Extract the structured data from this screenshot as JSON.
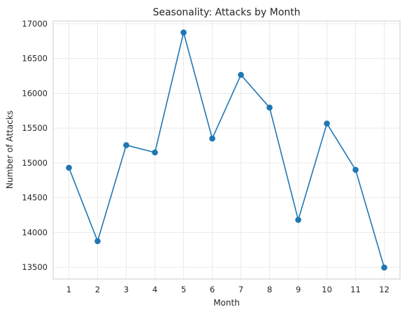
{
  "chart_data": {
    "type": "line",
    "title": "Seasonality: Attacks by Month",
    "xlabel": "Month",
    "ylabel": "Number of Attacks",
    "x": [
      1,
      2,
      3,
      4,
      5,
      6,
      7,
      8,
      9,
      10,
      11,
      12
    ],
    "series": [
      {
        "values": [
          14930,
          13875,
          15255,
          15150,
          16875,
          15350,
          16265,
          15795,
          14180,
          15565,
          14900,
          13495
        ],
        "color": "#1f77b4",
        "marker": "circle"
      }
    ],
    "xticks": [
      "1",
      "2",
      "3",
      "4",
      "5",
      "6",
      "7",
      "8",
      "9",
      "10",
      "11",
      "12"
    ],
    "yticks": [
      "13500",
      "14000",
      "14500",
      "15000",
      "15500",
      "16000",
      "16500",
      "17000"
    ],
    "xlim": [
      0.45,
      12.55
    ],
    "ylim": [
      13330,
      17040
    ],
    "grid": true
  }
}
